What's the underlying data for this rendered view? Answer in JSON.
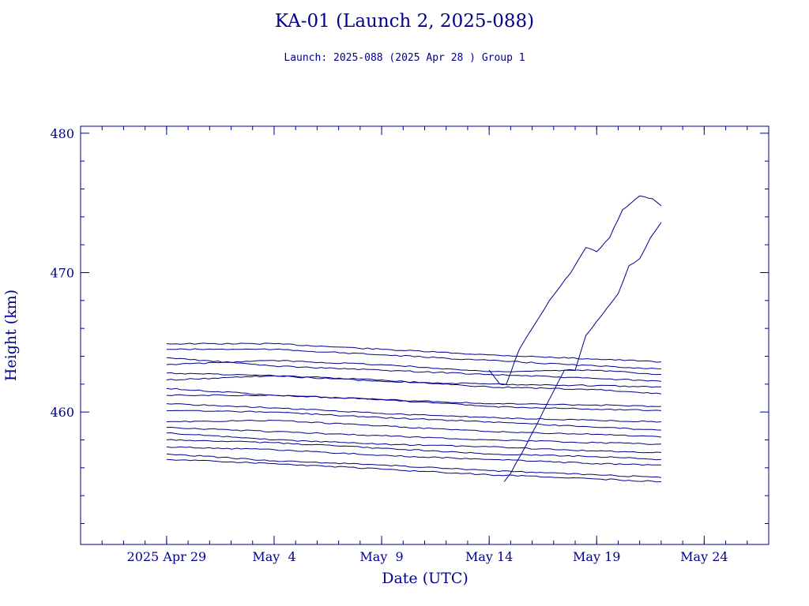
{
  "chart_data": {
    "type": "line",
    "title": "KA-01 (Launch 2, 2025-088)",
    "subtitle": "Launch: 2025-088  (2025 Apr 28 )  Group 1",
    "xlabel": "Date (UTC)",
    "ylabel": "Height (km)",
    "x_unit": "days",
    "xlim": [
      "2025-04-25",
      "2025-05-27"
    ],
    "ylim": [
      450.5,
      480.5
    ],
    "x_ticks": [
      {
        "date": "2025-04-29",
        "label": "2025 Apr 29"
      },
      {
        "date": "2025-05-04",
        "label": "May  4"
      },
      {
        "date": "2025-05-09",
        "label": "May  9"
      },
      {
        "date": "2025-05-14",
        "label": "May 14"
      },
      {
        "date": "2025-05-19",
        "label": "May 19"
      },
      {
        "date": "2025-05-24",
        "label": "May 24"
      }
    ],
    "y_ticks": [
      460,
      470,
      480
    ],
    "grid": false,
    "line_color": "#00008b",
    "series": [
      {
        "x": [
          "2025-04-29",
          "2025-05-04",
          "2025-05-09",
          "2025-05-14",
          "2025-05-19",
          "2025-05-22"
        ],
        "y": [
          464.9,
          464.9,
          464.5,
          464.1,
          463.8,
          463.6
        ]
      },
      {
        "x": [
          "2025-04-29",
          "2025-05-04",
          "2025-05-09",
          "2025-05-14",
          "2025-05-19",
          "2025-05-22"
        ],
        "y": [
          464.5,
          464.5,
          464.1,
          463.7,
          463.3,
          463.1
        ]
      },
      {
        "x": [
          "2025-04-29",
          "2025-05-04",
          "2025-05-09",
          "2025-05-14",
          "2025-05-19",
          "2025-05-22"
        ],
        "y": [
          463.9,
          463.3,
          463.0,
          462.7,
          462.4,
          462.2
        ]
      },
      {
        "x": [
          "2025-04-29",
          "2025-05-04",
          "2025-05-09",
          "2025-05-14",
          "2025-05-19",
          "2025-05-22"
        ],
        "y": [
          463.4,
          463.7,
          463.4,
          462.9,
          463.0,
          462.7
        ]
      },
      {
        "x": [
          "2025-04-29",
          "2025-05-04",
          "2025-05-09",
          "2025-05-14",
          "2025-05-19",
          "2025-05-22"
        ],
        "y": [
          462.8,
          462.6,
          462.2,
          462.0,
          461.9,
          461.8
        ]
      },
      {
        "x": [
          "2025-04-29",
          "2025-05-04",
          "2025-05-09",
          "2025-05-14",
          "2025-05-19",
          "2025-05-22"
        ],
        "y": [
          462.3,
          462.6,
          462.3,
          461.8,
          461.6,
          461.3
        ]
      },
      {
        "x": [
          "2025-04-29",
          "2025-05-04",
          "2025-05-09",
          "2025-05-14",
          "2025-05-19",
          "2025-05-22"
        ],
        "y": [
          461.7,
          461.2,
          460.9,
          460.6,
          460.5,
          460.4
        ]
      },
      {
        "x": [
          "2025-04-29",
          "2025-05-04",
          "2025-05-09",
          "2025-05-14",
          "2025-05-19",
          "2025-05-22"
        ],
        "y": [
          461.2,
          461.2,
          460.9,
          460.4,
          460.2,
          460.1
        ]
      },
      {
        "x": [
          "2025-04-29",
          "2025-05-04",
          "2025-05-09",
          "2025-05-14",
          "2025-05-19",
          "2025-05-22"
        ],
        "y": [
          460.6,
          460.3,
          459.9,
          459.6,
          459.4,
          459.3
        ]
      },
      {
        "x": [
          "2025-04-29",
          "2025-05-04",
          "2025-05-09",
          "2025-05-14",
          "2025-05-19",
          "2025-05-22"
        ],
        "y": [
          460.1,
          460.0,
          459.6,
          459.3,
          458.9,
          458.7
        ]
      },
      {
        "x": [
          "2025-04-29",
          "2025-05-04",
          "2025-05-09",
          "2025-05-14",
          "2025-05-19",
          "2025-05-22"
        ],
        "y": [
          459.3,
          459.4,
          459.0,
          458.6,
          458.4,
          458.2
        ]
      },
      {
        "x": [
          "2025-04-29",
          "2025-05-04",
          "2025-05-09",
          "2025-05-14",
          "2025-05-19",
          "2025-05-22"
        ],
        "y": [
          458.9,
          458.6,
          458.3,
          458.0,
          457.8,
          457.7
        ]
      },
      {
        "x": [
          "2025-04-29",
          "2025-05-04",
          "2025-05-09",
          "2025-05-14",
          "2025-05-19",
          "2025-05-22"
        ],
        "y": [
          458.5,
          458.0,
          457.7,
          457.5,
          457.2,
          457.1
        ]
      },
      {
        "x": [
          "2025-04-29",
          "2025-05-04",
          "2025-05-09",
          "2025-05-14",
          "2025-05-19",
          "2025-05-22"
        ],
        "y": [
          458.0,
          457.8,
          457.4,
          457.0,
          456.8,
          456.6
        ]
      },
      {
        "x": [
          "2025-04-29",
          "2025-05-04",
          "2025-05-09",
          "2025-05-14",
          "2025-05-19",
          "2025-05-22"
        ],
        "y": [
          457.5,
          457.3,
          456.9,
          456.6,
          456.3,
          456.2
        ]
      },
      {
        "x": [
          "2025-04-29",
          "2025-05-04",
          "2025-05-09",
          "2025-05-14",
          "2025-05-19",
          "2025-05-22"
        ],
        "y": [
          457.0,
          456.5,
          456.2,
          455.8,
          455.5,
          455.3
        ]
      },
      {
        "x": [
          "2025-04-29",
          "2025-05-04",
          "2025-05-09",
          "2025-05-14",
          "2025-05-19",
          "2025-05-22"
        ],
        "y": [
          456.6,
          456.3,
          455.9,
          455.5,
          455.2,
          455.0
        ]
      },
      {
        "x": [
          "2025-05-14",
          "2025-05-14.5",
          "2025-05-14.8",
          "2025-05-15.4",
          "2025-05-16",
          "2025-05-16.8",
          "2025-05-17.3",
          "2025-05-17.8",
          "2025-05-18.5",
          "2025-05-19",
          "2025-05-19.6",
          "2025-05-20.2",
          "2025-05-21",
          "2025-05-21.6",
          "2025-05-22"
        ],
        "y": [
          463.0,
          462.0,
          462.0,
          464.5,
          466.0,
          468.0,
          469.0,
          470.0,
          471.8,
          471.5,
          472.5,
          474.5,
          475.5,
          475.3,
          474.8
        ]
      },
      {
        "x": [
          "2025-05-14.7",
          "2025-05-15",
          "2025-05-15.5",
          "2025-05-16",
          "2025-05-16.5",
          "2025-05-17",
          "2025-05-17.5",
          "2025-05-18",
          "2025-05-18.5",
          "2025-05-19",
          "2025-05-19.5",
          "2025-05-20",
          "2025-05-20.5",
          "2025-05-21",
          "2025-05-21.5",
          "2025-05-22"
        ],
        "y": [
          455.0,
          455.6,
          457.0,
          458.5,
          460.0,
          461.5,
          463.0,
          463.0,
          465.5,
          466.5,
          467.5,
          468.5,
          470.5,
          471.0,
          472.5,
          473.6
        ]
      }
    ]
  }
}
